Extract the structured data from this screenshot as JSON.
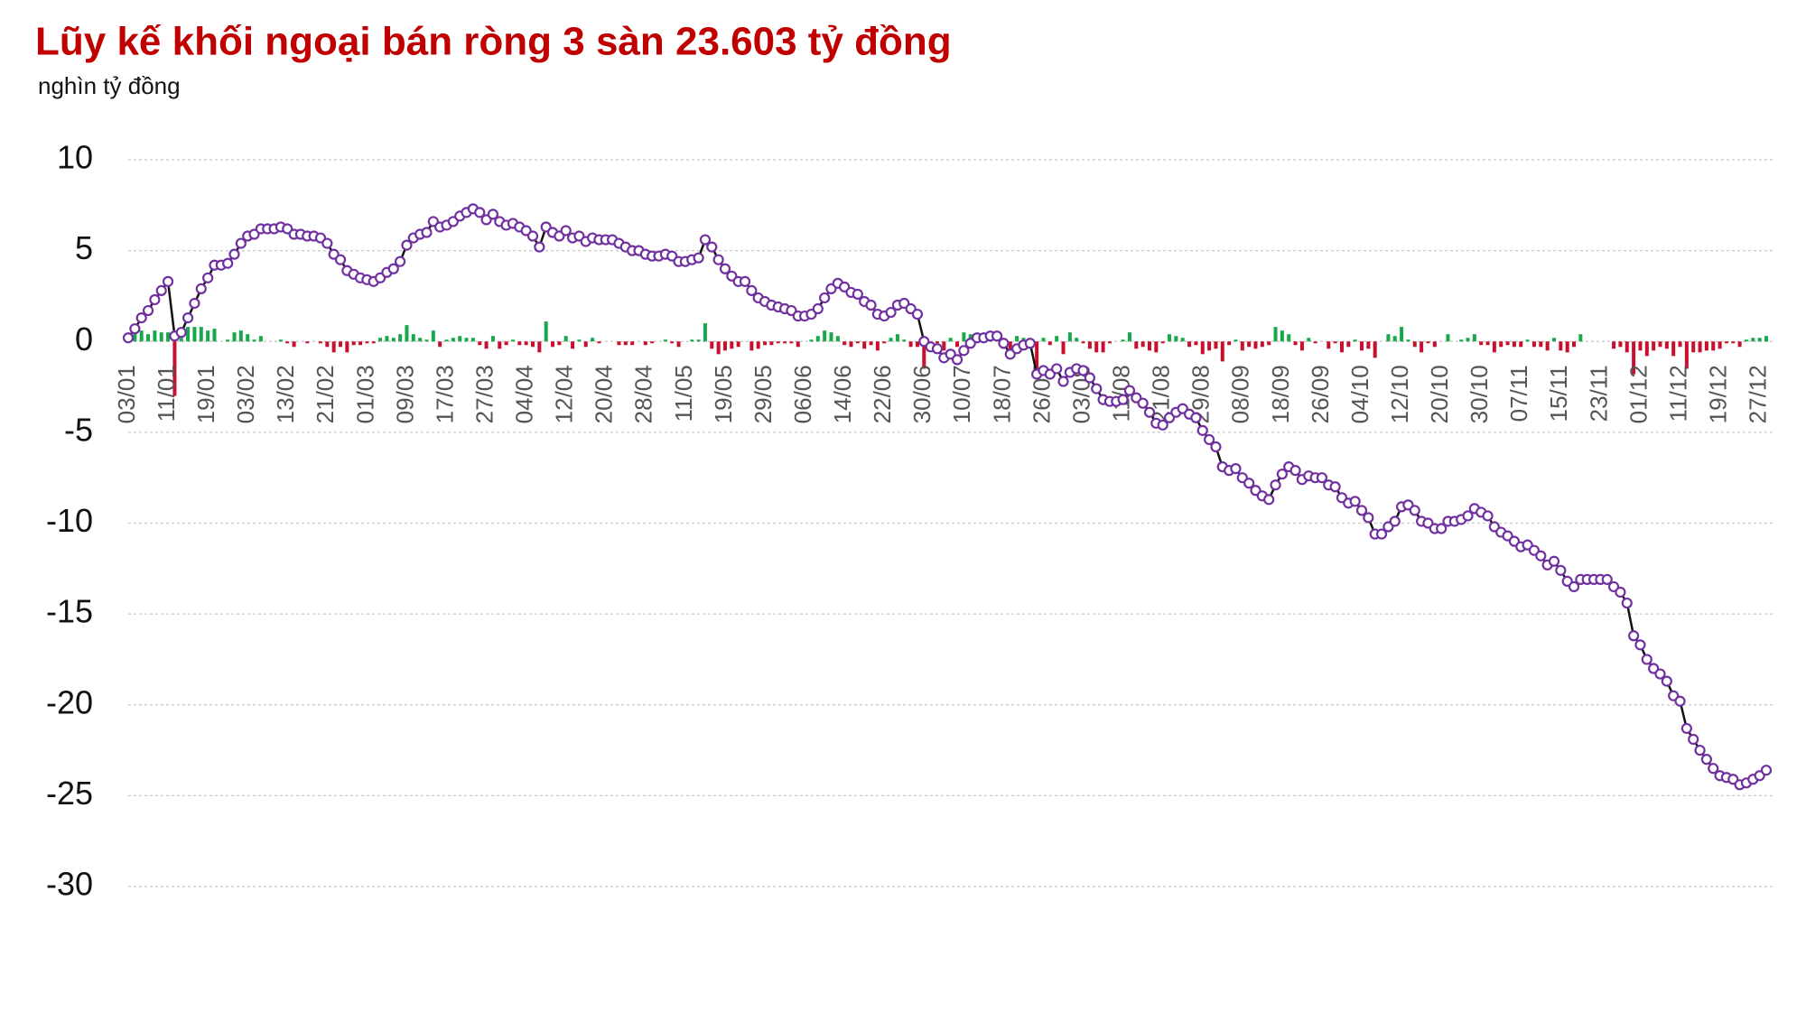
{
  "chart_data": {
    "type": "line",
    "title": "Lũy kế khối ngoại bán ròng 3 sàn 23.603 tỷ đồng",
    "y_label": "nghìn tỷ đồng",
    "categories": [
      "03/01",
      null,
      null,
      null,
      null,
      null,
      "11/01",
      null,
      null,
      null,
      null,
      null,
      "19/01",
      null,
      null,
      null,
      null,
      null,
      "03/02",
      null,
      null,
      null,
      null,
      null,
      "13/02",
      null,
      null,
      null,
      null,
      null,
      "21/02",
      null,
      null,
      null,
      null,
      null,
      "01/03",
      null,
      null,
      null,
      null,
      null,
      "09/03",
      null,
      null,
      null,
      null,
      null,
      "17/03",
      null,
      null,
      null,
      null,
      null,
      "27/03",
      null,
      null,
      null,
      null,
      null,
      "04/04",
      null,
      null,
      null,
      null,
      null,
      "12/04",
      null,
      null,
      null,
      null,
      null,
      "20/04",
      null,
      null,
      null,
      null,
      null,
      "28/04",
      null,
      null,
      null,
      null,
      null,
      "11/05",
      null,
      null,
      null,
      null,
      null,
      "19/05",
      null,
      null,
      null,
      null,
      null,
      "29/05",
      null,
      null,
      null,
      null,
      null,
      "06/06",
      null,
      null,
      null,
      null,
      null,
      "14/06",
      null,
      null,
      null,
      null,
      null,
      "22/06",
      null,
      null,
      null,
      null,
      null,
      "30/06",
      null,
      null,
      null,
      null,
      null,
      "10/07",
      null,
      null,
      null,
      null,
      null,
      "18/07",
      null,
      null,
      null,
      null,
      null,
      "26/07",
      null,
      null,
      null,
      null,
      null,
      "03/08",
      null,
      null,
      null,
      null,
      null,
      "11/08",
      null,
      null,
      null,
      null,
      null,
      "21/08",
      null,
      null,
      null,
      null,
      null,
      "29/08",
      null,
      null,
      null,
      null,
      null,
      "08/09",
      null,
      null,
      null,
      null,
      null,
      "18/09",
      null,
      null,
      null,
      null,
      null,
      "26/09",
      null,
      null,
      null,
      null,
      null,
      "04/10",
      null,
      null,
      null,
      null,
      null,
      "12/10",
      null,
      null,
      null,
      null,
      null,
      "20/10",
      null,
      null,
      null,
      null,
      null,
      "30/10",
      null,
      null,
      null,
      null,
      null,
      "07/11",
      null,
      null,
      null,
      null,
      null,
      "15/11",
      null,
      null,
      null,
      null,
      null,
      "23/11",
      null,
      null,
      null,
      null,
      null,
      "01/12",
      null,
      null,
      null,
      null,
      null,
      "11/12",
      null,
      null,
      null,
      null,
      null,
      "19/12",
      null,
      null,
      null,
      null,
      null,
      "27/12",
      null
    ],
    "series": [
      {
        "type": "bar",
        "color": "#18a84b",
        "negative_color": "#c8102e",
        "values": [
          0.2,
          0.5,
          0.6,
          0.4,
          0.6,
          0.5,
          0.5,
          -3.0,
          0.2,
          0.8,
          0.8,
          0.8,
          0.6,
          0.7,
          0,
          0.1,
          0.5,
          0.6,
          0.4,
          0.1,
          0.3,
          0,
          0,
          0.1,
          -0.1,
          -0.3,
          0,
          -0.1,
          0,
          -0.1,
          -0.3,
          -0.6,
          -0.3,
          -0.6,
          -0.2,
          -0.2,
          -0.1,
          -0.1,
          0.2,
          0.3,
          0.2,
          0.4,
          0.9,
          0.4,
          0.2,
          0.1,
          0.6,
          -0.3,
          0.1,
          0.2,
          0.3,
          0.2,
          0.2,
          -0.2,
          -0.4,
          0.3,
          -0.4,
          -0.2,
          0.1,
          -0.2,
          -0.2,
          -0.3,
          -0.6,
          1.1,
          -0.3,
          -0.2,
          0.3,
          -0.4,
          0.1,
          -0.3,
          0.2,
          -0.1,
          0,
          0,
          -0.2,
          -0.2,
          -0.2,
          0,
          -0.2,
          -0.1,
          0,
          0.1,
          -0.1,
          -0.3,
          0,
          0.1,
          0.1,
          1.0,
          -0.4,
          -0.7,
          -0.5,
          -0.4,
          -0.3,
          0,
          -0.5,
          -0.4,
          -0.2,
          -0.2,
          -0.1,
          -0.1,
          -0.1,
          -0.3,
          0,
          0.1,
          0.3,
          0.6,
          0.5,
          0.3,
          -0.2,
          -0.3,
          -0.1,
          -0.4,
          -0.2,
          -0.5,
          -0.1,
          0.2,
          0.4,
          0.1,
          -0.3,
          -0.3,
          -1.5,
          -0.3,
          -0.1,
          -0.5,
          0.2,
          -0.3,
          0.5,
          0.4,
          0.3,
          0,
          0.1,
          0,
          -0.4,
          -0.6,
          0.3,
          0.2,
          0.1,
          -1.7,
          0.2,
          -0.2,
          0.3,
          -0.7,
          0.5,
          0.2,
          -0.1,
          -0.4,
          -0.6,
          -0.6,
          -0.1,
          0,
          0.1,
          0.5,
          -0.4,
          -0.3,
          -0.5,
          -0.6,
          -0.1,
          0.4,
          0.3,
          0.2,
          -0.3,
          -0.2,
          -0.7,
          -0.5,
          -0.4,
          -1.1,
          -0.2,
          0.1,
          -0.5,
          -0.3,
          -0.4,
          -0.3,
          -0.2,
          0.8,
          0.6,
          0.4,
          -0.2,
          -0.5,
          0.2,
          -0.1,
          0,
          -0.4,
          -0.1,
          -0.6,
          -0.3,
          0.1,
          -0.5,
          -0.4,
          -0.9,
          0,
          0.4,
          0.3,
          0.8,
          0.1,
          -0.3,
          -0.6,
          -0.1,
          -0.3,
          0,
          0.4,
          0,
          0.1,
          0.2,
          0.4,
          -0.2,
          -0.2,
          -0.6,
          -0.3,
          -0.2,
          -0.3,
          -0.3,
          0.1,
          -0.3,
          -0.3,
          -0.5,
          0.2,
          -0.5,
          -0.6,
          -0.3,
          0.4,
          0,
          0,
          0,
          0,
          -0.4,
          -0.3,
          -0.6,
          -1.8,
          -0.5,
          -0.8,
          -0.5,
          -0.3,
          -0.4,
          -0.8,
          -0.3,
          -1.5,
          -0.6,
          -0.6,
          -0.5,
          -0.5,
          -0.4,
          -0.1,
          -0.1,
          -0.3,
          0.1,
          0.2,
          0.2,
          0.3
        ]
      },
      {
        "type": "line",
        "color": "#111111",
        "marker_color": "#7030a0",
        "values": [
          0.2,
          0.7,
          1.3,
          1.7,
          2.3,
          2.8,
          3.3,
          0.3,
          0.5,
          1.3,
          2.1,
          2.9,
          3.5,
          4.2,
          4.2,
          4.3,
          4.8,
          5.4,
          5.8,
          5.9,
          6.2,
          6.2,
          6.2,
          6.3,
          6.2,
          5.9,
          5.9,
          5.8,
          5.8,
          5.7,
          5.4,
          4.8,
          4.5,
          3.9,
          3.7,
          3.5,
          3.4,
          3.3,
          3.5,
          3.8,
          4.0,
          4.4,
          5.3,
          5.7,
          5.9,
          6.0,
          6.6,
          6.3,
          6.4,
          6.6,
          6.9,
          7.1,
          7.3,
          7.1,
          6.7,
          7.0,
          6.6,
          6.4,
          6.5,
          6.3,
          6.1,
          5.8,
          5.2,
          6.3,
          6.0,
          5.8,
          6.1,
          5.7,
          5.8,
          5.5,
          5.7,
          5.6,
          5.6,
          5.6,
          5.4,
          5.2,
          5.0,
          5.0,
          4.8,
          4.7,
          4.7,
          4.8,
          4.7,
          4.4,
          4.4,
          4.5,
          4.6,
          5.6,
          5.2,
          4.5,
          4.0,
          3.6,
          3.3,
          3.3,
          2.8,
          2.4,
          2.2,
          2.0,
          1.9,
          1.8,
          1.7,
          1.4,
          1.4,
          1.5,
          1.8,
          2.4,
          2.9,
          3.2,
          3.0,
          2.7,
          2.6,
          2.2,
          2.0,
          1.5,
          1.4,
          1.6,
          2.0,
          2.1,
          1.8,
          1.5,
          0.0,
          -0.3,
          -0.4,
          -0.9,
          -0.7,
          -1.0,
          -0.5,
          -0.1,
          0.2,
          0.2,
          0.3,
          0.3,
          -0.1,
          -0.7,
          -0.4,
          -0.2,
          -0.1,
          -1.8,
          -1.6,
          -1.8,
          -1.5,
          -2.2,
          -1.7,
          -1.5,
          -1.6,
          -2.0,
          -2.6,
          -3.2,
          -3.3,
          -3.3,
          -3.2,
          -2.7,
          -3.1,
          -3.4,
          -3.9,
          -4.5,
          -4.6,
          -4.2,
          -3.9,
          -3.7,
          -4.0,
          -4.2,
          -4.9,
          -5.4,
          -5.8,
          -6.9,
          -7.1,
          -7.0,
          -7.5,
          -7.8,
          -8.2,
          -8.5,
          -8.7,
          -7.9,
          -7.3,
          -6.9,
          -7.1,
          -7.6,
          -7.4,
          -7.5,
          -7.5,
          -7.9,
          -8.0,
          -8.6,
          -8.9,
          -8.8,
          -9.3,
          -9.7,
          -10.6,
          -10.6,
          -10.2,
          -9.9,
          -9.1,
          -9.0,
          -9.3,
          -9.9,
          -10.0,
          -10.3,
          -10.3,
          -9.9,
          -9.9,
          -9.8,
          -9.6,
          -9.2,
          -9.4,
          -9.6,
          -10.2,
          -10.5,
          -10.7,
          -11.0,
          -11.3,
          -11.2,
          -11.5,
          -11.8,
          -12.3,
          -12.1,
          -12.6,
          -13.2,
          -13.5,
          -13.1,
          -13.1,
          -13.1,
          -13.1,
          -13.1,
          -13.5,
          -13.8,
          -14.4,
          -16.2,
          -16.7,
          -17.5,
          -18.0,
          -18.3,
          -18.7,
          -19.5,
          -19.8,
          -21.3,
          -21.9,
          -22.5,
          -23.0,
          -23.5,
          -23.9,
          -24.0,
          -24.1,
          -24.4,
          -24.3,
          -24.1,
          -23.9,
          -23.6
        ]
      }
    ],
    "ylim": [
      -30,
      10
    ],
    "yticks": [
      -30,
      -25,
      -20,
      -15,
      -10,
      -5,
      0,
      5,
      10
    ],
    "grid": true
  }
}
